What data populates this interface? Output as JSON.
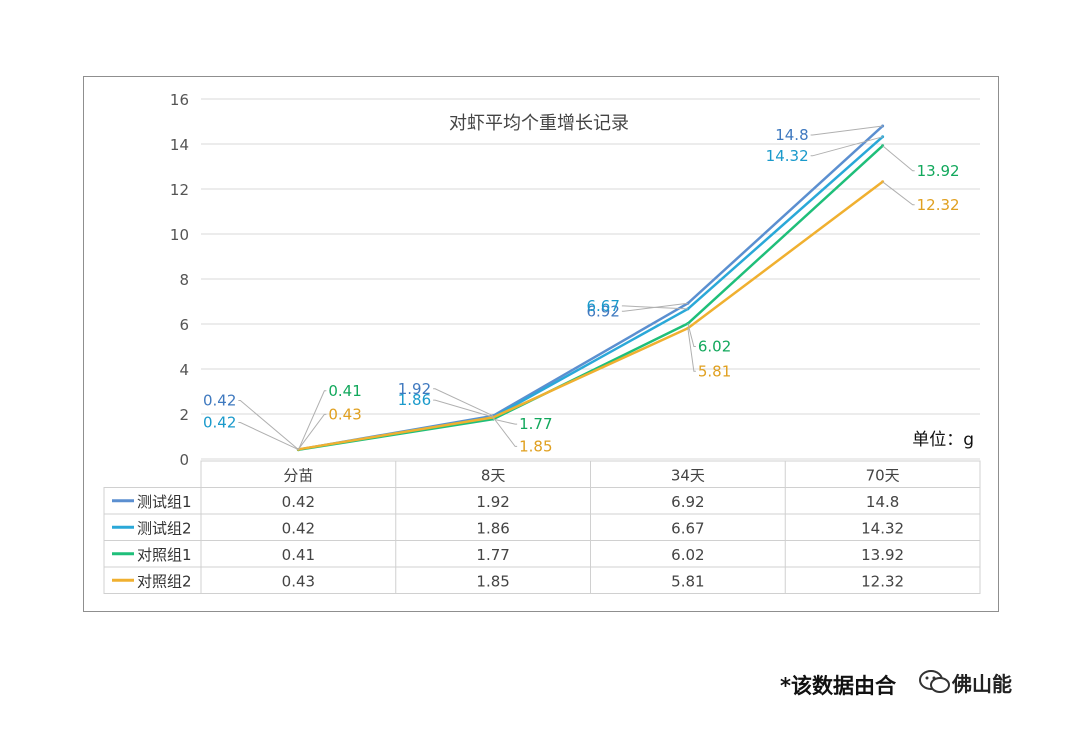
{
  "chart_data": {
    "type": "line",
    "title": "对虾平均个重增长记录",
    "unit_label": "单位：g",
    "categories": [
      "分苗",
      "8天",
      "34天",
      "70天"
    ],
    "ylim": [
      0,
      16
    ],
    "yticks": [
      0,
      2,
      4,
      6,
      8,
      10,
      12,
      14,
      16
    ],
    "grid": true,
    "legend": "data-table",
    "series": [
      {
        "name": "测试组1",
        "color": "#5b8fd0",
        "values": [
          0.42,
          1.92,
          6.92,
          14.8
        ]
      },
      {
        "name": "测试组2",
        "color": "#2aa8d8",
        "values": [
          0.42,
          1.86,
          6.67,
          14.32
        ]
      },
      {
        "name": "对照组1",
        "color": "#1fbf7a",
        "values": [
          0.41,
          1.77,
          6.02,
          13.92
        ]
      },
      {
        "name": "对照组2",
        "color": "#f0b030",
        "values": [
          0.43,
          1.85,
          5.81,
          12.32
        ]
      }
    ],
    "table": {
      "rows": [
        [
          "0.42",
          "1.92",
          "6.92",
          "14.8"
        ],
        [
          "0.42",
          "1.86",
          "6.67",
          "14.32"
        ],
        [
          "0.41",
          "1.77",
          "6.02",
          "13.92"
        ],
        [
          "0.43",
          "1.85",
          "5.81",
          "12.32"
        ]
      ]
    }
  },
  "label_colors": [
    "#3f79bf",
    "#1a9acb",
    "#12a85c",
    "#e0a020"
  ],
  "footnote": {
    "text": "*该数据由合",
    "watermark_icon": "wechat-icon",
    "watermark_text": "佛山能"
  }
}
